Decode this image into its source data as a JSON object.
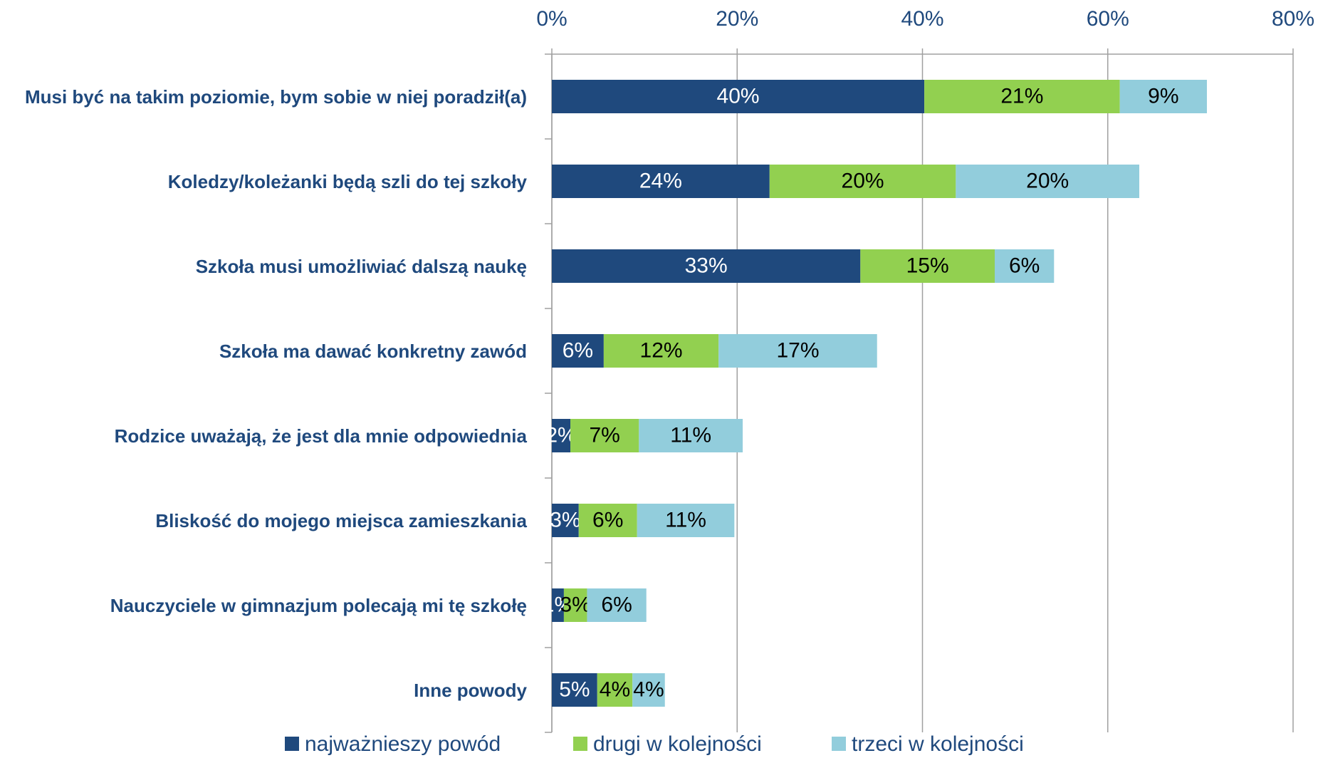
{
  "chart_data": {
    "type": "stacked_barh",
    "categories": [
      "Musi być na takim poziomie, bym sobie w niej poradził(a)",
      "Koledzy/koleżanki będą szli do tej szkoły",
      "Szkoła musi umożliwiać dalszą naukę",
      "Szkoła ma dawać konkretny zawód",
      "Rodzice uważają, że jest dla mnie odpowiednia",
      "Bliskość do mojego miejsca zamieszkania",
      "Nauczyciele w gimnazjum polecają mi tę szkołę",
      "Inne powody"
    ],
    "series": [
      {
        "name": "najważnieszy powód",
        "color": "#1f497d",
        "values": [
          40.2,
          23.5,
          33.3,
          5.6,
          2.0,
          2.9,
          1.3,
          4.9
        ],
        "value_labels": [
          "40%",
          "24%",
          "33%",
          "6%",
          "2%",
          "3%",
          "1%",
          "5%"
        ]
      },
      {
        "name": "drugi w kolejności",
        "color": "#92d050",
        "values": [
          21.1,
          20.1,
          14.5,
          12.4,
          7.4,
          6.3,
          2.5,
          3.8
        ],
        "value_labels": [
          "21%",
          "20%",
          "15%",
          "12%",
          "7%",
          "6%",
          "3%",
          "4%"
        ]
      },
      {
        "name": "trzeci w kolejności",
        "color": "#92cddc",
        "values": [
          9.4,
          19.8,
          6.4,
          17.1,
          11.2,
          10.5,
          6.4,
          3.5
        ],
        "value_labels": [
          "9%",
          "20%",
          "6%",
          "17%",
          "11%",
          "11%",
          "6%",
          "4%"
        ]
      }
    ],
    "xlim": [
      0,
      80
    ],
    "xticks": [
      {
        "value": 0,
        "label": "0%"
      },
      {
        "value": 20,
        "label": "20%"
      },
      {
        "value": 40,
        "label": "40%"
      },
      {
        "value": 60,
        "label": "60%"
      },
      {
        "value": 80,
        "label": "80%"
      }
    ],
    "grid": true,
    "legend": "bottom"
  }
}
